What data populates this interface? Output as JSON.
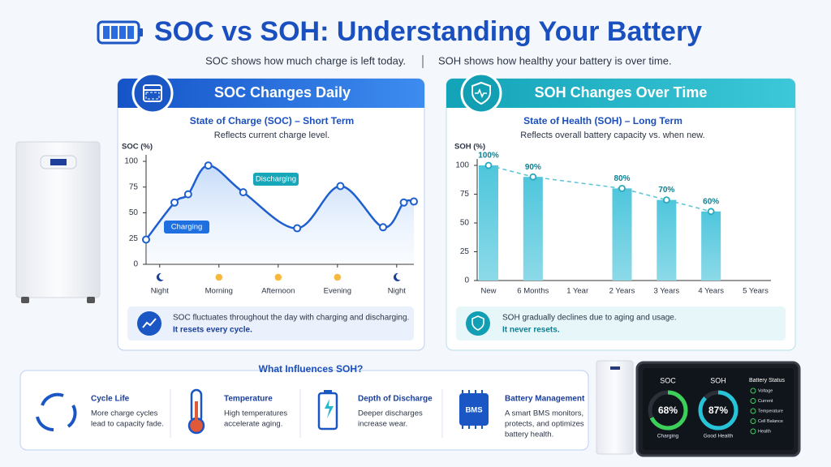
{
  "header": {
    "title": "SOC vs SOH: Understanding Your Battery",
    "subtitle_left": "SOC shows how much charge is left today.",
    "subtitle_right": "SOH shows how healthy your battery is over time."
  },
  "panels": [
    {
      "title": "SOC Changes Daily",
      "note": "SOC fluctuates throughout the day with charging and discharging.",
      "note_emphasis": "It resets every cycle."
    },
    {
      "title": "SOH Changes Over Time",
      "note": "SOH gradually declines due to aging and usage.",
      "note_emphasis": "It never resets."
    }
  ],
  "chart_data": [
    {
      "type": "line",
      "title": "State of Charge (SOC) – Short Term",
      "subtitle": "Reflects current charge level.",
      "y_label": "SOC (%)",
      "xlim": [
        -0.23,
        4.29
      ],
      "xticks": [
        {
          "value": 0,
          "label": "Night"
        },
        {
          "value": 1,
          "label": "Morning"
        },
        {
          "value": 2,
          "label": "Afternoon"
        },
        {
          "value": 3,
          "label": "Evening"
        },
        {
          "value": 4,
          "label": "Night"
        }
      ],
      "ylim": [
        0,
        100
      ],
      "yticks": [
        0,
        25,
        50,
        75,
        100
      ],
      "series": [
        {
          "color": "#1e5fd0",
          "x": [
            -0.23,
            0.25,
            0.48,
            0.82,
            1.41,
            2.32,
            3.05,
            3.77,
            4.12,
            4.29
          ],
          "values": [
            24,
            60,
            68,
            96,
            70,
            35,
            76,
            36,
            60,
            61
          ]
        }
      ],
      "annotations": [
        "Charging",
        "Discharging"
      ]
    },
    {
      "type": "bar",
      "title": "State of Health (SOH) – Long Term",
      "subtitle": "Reflects overall battery capacity vs. when new.",
      "y_label": "SOH (%)",
      "categories": [
        "New",
        "6 Months",
        "1 Year",
        "2 Years",
        "3 Years",
        "4 Years",
        "5 Years"
      ],
      "values": [
        100,
        90,
        null,
        80,
        70,
        60,
        null
      ],
      "value_labels": [
        "100%",
        "90%",
        null,
        "80%",
        "70%",
        "60%",
        null
      ],
      "color": "#4fc6dc",
      "trend_line": true,
      "ylim": [
        0,
        100
      ],
      "yticks": [
        0,
        25,
        50,
        75,
        100
      ]
    }
  ],
  "influences": {
    "title": "What Influences SOH?",
    "items": [
      {
        "title": "Cycle Life",
        "text": [
          "More charge cycles",
          "lead to capacity fade."
        ]
      },
      {
        "title": "Temperature",
        "text": [
          "High temperatures",
          "accelerate aging."
        ]
      },
      {
        "title": "Depth of Discharge",
        "text": [
          "Deeper discharges",
          "increase wear."
        ]
      },
      {
        "title": "Battery Management",
        "icon_label": "BMS",
        "text": [
          "A smart BMS monitors,",
          "protects, and optimizes",
          "battery health."
        ]
      }
    ]
  },
  "display": {
    "gauges": [
      {
        "label": "SOC",
        "value": 68,
        "value_label": "68%",
        "status": "Charging",
        "color": "#3ccf5a"
      },
      {
        "label": "SOH",
        "value": 87,
        "value_label": "87%",
        "status": "Good Health",
        "color": "#27c3d6"
      }
    ],
    "status": {
      "title": "Battery Status",
      "items": [
        "Voltage",
        "Current",
        "Temperature",
        "Cell Balance",
        "Health"
      ]
    }
  }
}
